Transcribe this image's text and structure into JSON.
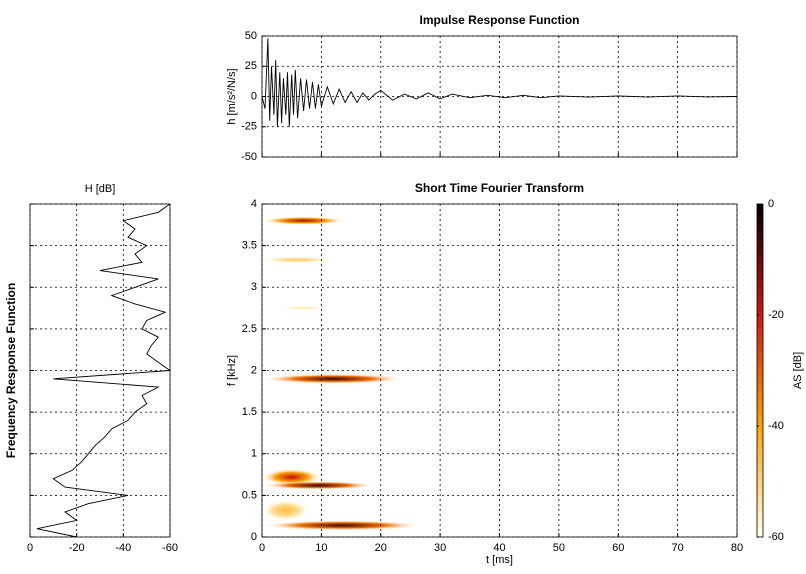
{
  "chart_data": [
    {
      "type": "line",
      "title": "Impulse Response Function",
      "ylabel": "h [m/s²/N/s]",
      "color": "#000000",
      "x": [
        0,
        0.5,
        1,
        1.3,
        1.6,
        2,
        2.3,
        2.6,
        3,
        3.3,
        3.6,
        4,
        4.3,
        4.6,
        5,
        5.3,
        5.6,
        6,
        6.5,
        7,
        7.5,
        8,
        8.5,
        9,
        9.5,
        10,
        11,
        12,
        13,
        14,
        15,
        16,
        17,
        18,
        19,
        20,
        22,
        24,
        26,
        28,
        30,
        32,
        35,
        38,
        41,
        44,
        47,
        50,
        55,
        60,
        65,
        70,
        75,
        80
      ],
      "values": [
        0,
        -10,
        48,
        -20,
        25,
        -15,
        30,
        -25,
        20,
        -22,
        15,
        -15,
        20,
        -25,
        18,
        -15,
        22,
        -18,
        15,
        -12,
        14,
        -10,
        12,
        -10,
        10,
        -8,
        8,
        -6,
        6,
        -5,
        4,
        -5,
        3,
        -3,
        2,
        5,
        -3,
        2,
        -2,
        3,
        -2,
        2,
        -1,
        1,
        -1,
        1,
        -1,
        0.5,
        -0.5,
        0.5,
        -0.5,
        0.5,
        -0.3,
        0
      ],
      "xlim": [
        0,
        80
      ],
      "ylim": [
        -50,
        50
      ],
      "xticks": [
        0,
        10,
        20,
        30,
        40,
        50,
        60,
        70,
        80
      ],
      "yticks": [
        -50,
        -25,
        0,
        25,
        50
      ],
      "grid": true,
      "xtick_labels": false,
      "ytick_labels": true
    },
    {
      "type": "heatmap",
      "title": "Short Time Fourier Transform",
      "xlabel": "t [ms]",
      "ylabel": "f [kHz]",
      "xlim": [
        0,
        80
      ],
      "ylim": [
        0,
        4
      ],
      "xticks": [
        0,
        10,
        20,
        30,
        40,
        50,
        60,
        70,
        80
      ],
      "yticks": [
        0,
        0.5,
        1,
        1.5,
        2,
        2.5,
        3,
        3.5,
        4
      ],
      "grid": true,
      "xtick_labels": true,
      "ytick_labels": true,
      "blobs": [
        {
          "f": 3.8,
          "bw": 0.1,
          "t": [
            0,
            14
          ],
          "level": -15
        },
        {
          "f": 3.33,
          "bw": 0.07,
          "t": [
            0,
            12
          ],
          "level": -48
        },
        {
          "f": 2.75,
          "bw": 0.05,
          "t": [
            3,
            11
          ],
          "level": -55
        },
        {
          "f": 1.9,
          "bw": 0.12,
          "t": [
            0,
            24
          ],
          "level": -5
        },
        {
          "f": 0.72,
          "bw": 0.2,
          "t": [
            0,
            10
          ],
          "level": -18
        },
        {
          "f": 0.62,
          "bw": 0.1,
          "t": [
            0,
            19
          ],
          "level": -4
        },
        {
          "f": 0.32,
          "bw": 0.25,
          "t": [
            0,
            8
          ],
          "level": -45
        },
        {
          "f": 0.14,
          "bw": 0.12,
          "t": [
            0,
            27
          ],
          "level": -6
        }
      ],
      "colorbar": {
        "label": "AS [dB]",
        "clim": [
          -60,
          0
        ],
        "ticks": [
          -60,
          -40,
          -20,
          0
        ]
      }
    },
    {
      "type": "profile",
      "title": "H [dB]",
      "ylabel": "Frequency Response Function",
      "color": "#000000",
      "y": [
        0,
        0.1,
        0.2,
        0.3,
        0.4,
        0.5,
        0.6,
        0.7,
        0.8,
        0.9,
        1,
        1.1,
        1.2,
        1.3,
        1.4,
        1.5,
        1.6,
        1.7,
        1.8,
        1.9,
        2,
        2.1,
        2.2,
        2.3,
        2.4,
        2.5,
        2.6,
        2.7,
        2.8,
        2.9,
        3,
        3.1,
        3.2,
        3.3,
        3.4,
        3.5,
        3.6,
        3.7,
        3.8,
        3.9,
        4
      ],
      "values": [
        -20,
        -3,
        -20,
        -15,
        -25,
        -42,
        -15,
        -10,
        -18,
        -22,
        -25,
        -28,
        -32,
        -35,
        -42,
        -45,
        -50,
        -48,
        -55,
        -10,
        -60,
        -55,
        -50,
        -52,
        -55,
        -48,
        -50,
        -58,
        -45,
        -35,
        -45,
        -55,
        -30,
        -48,
        -45,
        -50,
        -42,
        -45,
        -40,
        -55,
        -60
      ],
      "xlim": [
        0,
        -60
      ],
      "ylim": [
        0,
        4
      ],
      "xticks": [
        0,
        -20,
        -40,
        -60
      ],
      "yticks": [
        0,
        0.5,
        1,
        1.5,
        2,
        2.5,
        3,
        3.5,
        4
      ],
      "grid": true,
      "xtick_labels": true,
      "ytick_labels": false
    }
  ]
}
